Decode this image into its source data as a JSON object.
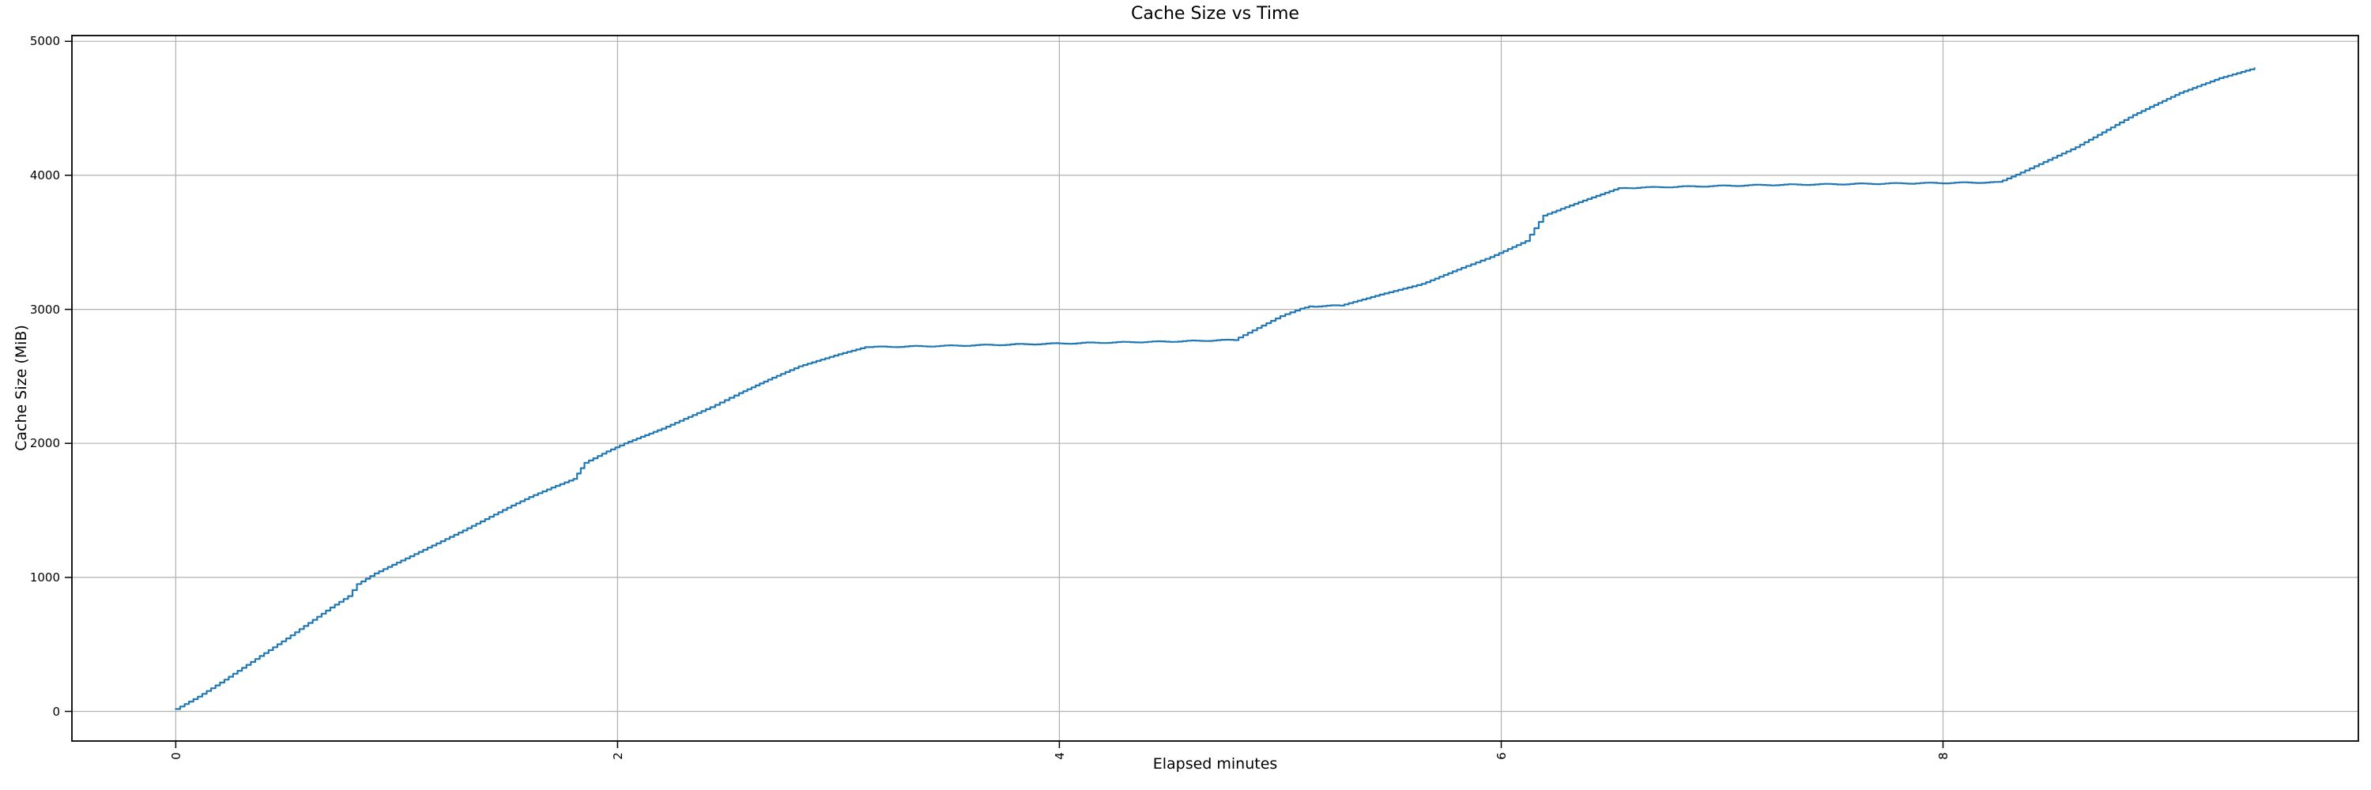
{
  "chart_data": {
    "type": "line",
    "title": "Cache Size vs Time",
    "xlabel": "Elapsed minutes",
    "ylabel": "Cache Size (MiB)",
    "xlim": [
      -0.47,
      9.88
    ],
    "ylim": [
      -221,
      5043
    ],
    "xticks": [
      0,
      2,
      4,
      6,
      8
    ],
    "xtick_labels": [
      "0",
      "2",
      "4",
      "6",
      "8"
    ],
    "yticks": [
      0,
      1000,
      2000,
      3000,
      4000,
      5000
    ],
    "ytick_labels": [
      "0",
      "1000",
      "2000",
      "3000",
      "4000",
      "5000"
    ],
    "grid": true,
    "legend_position": "none",
    "x_tick_rotation_deg": 90,
    "line_color": "#1f77b4",
    "grid_color": "#b0b0b0",
    "spine_color": "#000000",
    "background_color": "#ffffff",
    "render_style": "step-sampled staircase (monitoring samples)",
    "series": [
      {
        "name": "cache_size_mib",
        "points": [
          [
            0.0,
            18
          ],
          [
            0.1,
            110
          ],
          [
            0.2,
            215
          ],
          [
            0.3,
            325
          ],
          [
            0.4,
            435
          ],
          [
            0.5,
            545
          ],
          [
            0.6,
            660
          ],
          [
            0.7,
            775
          ],
          [
            0.78,
            860
          ],
          [
            0.82,
            950
          ],
          [
            0.9,
            1030
          ],
          [
            1.0,
            1110
          ],
          [
            1.1,
            1190
          ],
          [
            1.2,
            1270
          ],
          [
            1.3,
            1350
          ],
          [
            1.4,
            1435
          ],
          [
            1.5,
            1520
          ],
          [
            1.6,
            1600
          ],
          [
            1.7,
            1670
          ],
          [
            1.8,
            1735
          ],
          [
            1.85,
            1855
          ],
          [
            1.95,
            1940
          ],
          [
            2.03,
            2000
          ],
          [
            2.2,
            2110
          ],
          [
            2.42,
            2270
          ],
          [
            2.55,
            2375
          ],
          [
            2.7,
            2490
          ],
          [
            2.82,
            2575
          ],
          [
            3.0,
            2665
          ],
          [
            3.12,
            2718
          ],
          [
            3.5,
            2728
          ],
          [
            4.0,
            2745
          ],
          [
            4.2,
            2752
          ],
          [
            4.5,
            2760
          ],
          [
            4.79,
            2772
          ],
          [
            5.0,
            2950
          ],
          [
            5.09,
            3005
          ],
          [
            5.13,
            3022
          ],
          [
            5.27,
            3028
          ],
          [
            5.45,
            3110
          ],
          [
            5.64,
            3190
          ],
          [
            5.82,
            3310
          ],
          [
            5.95,
            3390
          ],
          [
            6.11,
            3510
          ],
          [
            6.19,
            3700
          ],
          [
            6.35,
            3800
          ],
          [
            6.53,
            3905
          ],
          [
            6.8,
            3915
          ],
          [
            7.2,
            3928
          ],
          [
            7.6,
            3936
          ],
          [
            8.25,
            3948
          ],
          [
            8.33,
            4005
          ],
          [
            8.6,
            4210
          ],
          [
            8.86,
            4450
          ],
          [
            9.07,
            4615
          ],
          [
            9.25,
            4725
          ],
          [
            9.41,
            4800
          ]
        ]
      }
    ]
  }
}
